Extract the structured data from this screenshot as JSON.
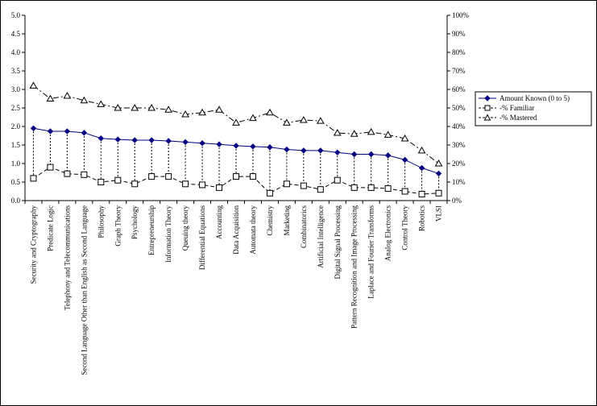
{
  "chart_data": {
    "type": "line",
    "title": "",
    "xlabel": "",
    "ylabel": "",
    "categories": [
      "Security and Cryptography",
      "Predicate Logic",
      "Telephony and Telecommunications",
      "Second Language Other than English as Second Language",
      "Philosophy",
      "Graph Theory",
      "Psychology",
      "Entrepreneurship",
      "Information Theory",
      "Queuing theory",
      "Differential Equations",
      "Accounting",
      "Data Acquisition",
      "Automata theory",
      "Chemistry",
      "Marketing",
      "Combinatorics",
      "Artificial Intelligence",
      "Digital Signal Processing",
      "Pattern Recognition and Image Processing",
      "Laplace and Fourier Transforms",
      "Analog Electronics",
      "Control Theory",
      "Robotics",
      "VLSI"
    ],
    "ylim_left": [
      0,
      5
    ],
    "yticks_left": [
      "0.0",
      "0.5",
      "1.0",
      "1.5",
      "2.0",
      "2.5",
      "3.0",
      "3.5",
      "4.0",
      "4.5",
      "5.0"
    ],
    "ylim_right": [
      0,
      100
    ],
    "yticks_right": [
      "0%",
      "10%",
      "20%",
      "30%",
      "40%",
      "50%",
      "60%",
      "70%",
      "80%",
      "90%",
      "100%"
    ],
    "legend_position": "right",
    "series": [
      {
        "name": "Amount Known (0 to 5)",
        "axis": "left",
        "marker": "diamond",
        "line": "solid",
        "color": "#000080",
        "values": [
          1.95,
          1.87,
          1.87,
          1.83,
          1.68,
          1.65,
          1.63,
          1.63,
          1.61,
          1.58,
          1.55,
          1.52,
          1.48,
          1.46,
          1.44,
          1.38,
          1.35,
          1.35,
          1.3,
          1.25,
          1.25,
          1.22,
          1.1,
          0.88,
          0.73
        ]
      },
      {
        "name": "-% Familiar",
        "axis": "right",
        "marker": "square",
        "line": "dashed",
        "color": "#000000",
        "values": [
          12,
          18,
          14.5,
          14,
          10,
          11,
          9,
          13,
          13,
          9,
          8.5,
          7,
          13,
          13,
          4,
          9,
          8,
          6,
          11,
          7,
          7,
          6.5,
          5,
          3.5,
          4
        ]
      },
      {
        "name": "-% Mastered",
        "axis": "right",
        "marker": "triangle",
        "line": "dashdot",
        "color": "#000000",
        "values": [
          62,
          55,
          56.5,
          54,
          52,
          50,
          50,
          50,
          49,
          46.5,
          47.5,
          49,
          42,
          44.5,
          47.5,
          42,
          43.5,
          43,
          36.5,
          36,
          37,
          35.5,
          33.5,
          27,
          20
        ]
      }
    ],
    "error_bars": {
      "series": "Amount Known (0 to 5)",
      "style": "dotted",
      "down_to": "-% Familiar"
    }
  }
}
